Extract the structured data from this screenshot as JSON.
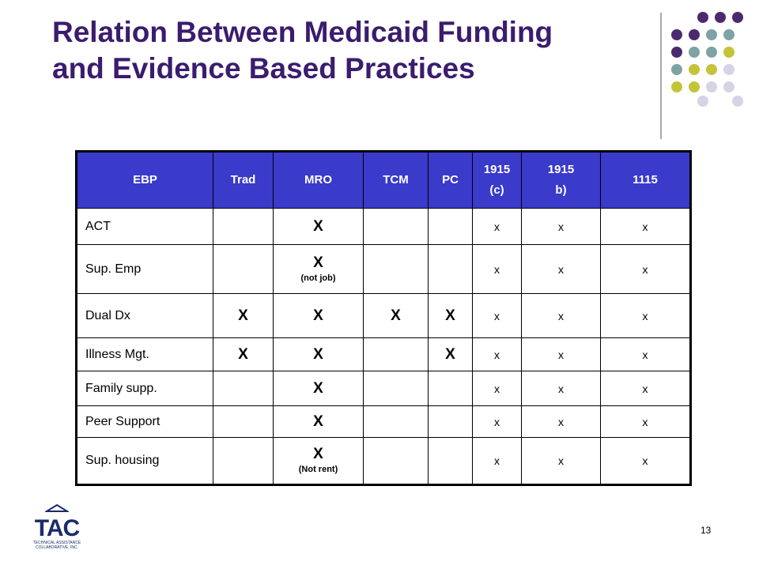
{
  "title": [
    "Relation Between Medicaid Funding",
    "and Evidence Based Practices"
  ],
  "table": {
    "header": [
      "EBP",
      "Trad",
      "MRO",
      "TCM",
      "PC",
      "1915 (c)",
      "1915 b)",
      "1115"
    ],
    "rows": [
      [
        "ACT",
        null,
        "X",
        null,
        null,
        "x",
        "x",
        "x"
      ],
      [
        "Sup. Emp",
        null,
        {
          "mark": "X",
          "note": "(not job)"
        },
        null,
        null,
        "x",
        "x",
        "x"
      ],
      [
        "Dual Dx",
        "X",
        "X",
        "X",
        "X",
        "x",
        "x",
        "x"
      ],
      [
        "Illness Mgt.",
        "X",
        "X",
        null,
        "X",
        "x",
        "x",
        "x"
      ],
      [
        "Family supp.",
        null,
        "X",
        null,
        null,
        "x",
        "x",
        "x"
      ],
      [
        "Peer Support",
        null,
        "X",
        null,
        null,
        "x",
        "x",
        "x"
      ],
      [
        "Sup. housing",
        null,
        {
          "mark": "X",
          "note": "(Not rent)"
        },
        null,
        null,
        "x",
        "x",
        "x"
      ]
    ]
  },
  "logo": {
    "text": "TAC",
    "subtitle": "TECHNICAL ASSISTANCE COLLABORATIVE, INC."
  },
  "page_number": "13"
}
